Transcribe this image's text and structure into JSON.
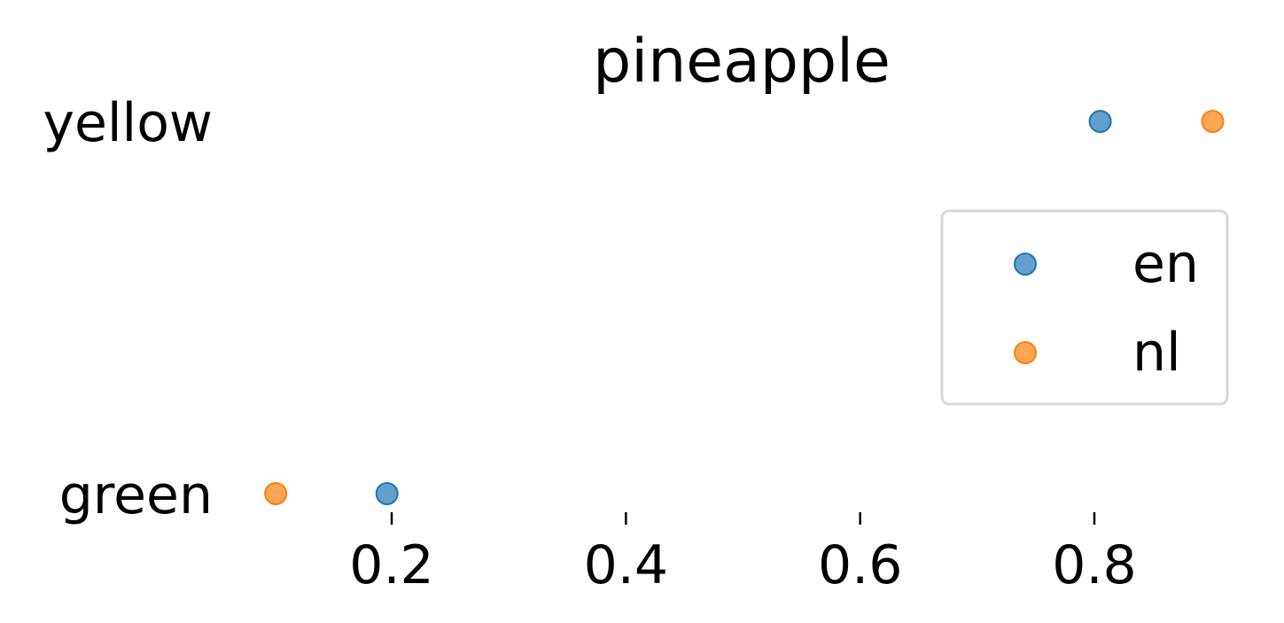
{
  "chart_data": {
    "type": "scatter",
    "title": "pineapple",
    "xlabel": "",
    "ylabel": "",
    "categories": [
      "yellow",
      "green"
    ],
    "x_ticks": [
      0.2,
      0.4,
      0.6,
      0.8
    ],
    "x_tick_labels": [
      "0.2",
      "0.4",
      "0.6",
      "0.8"
    ],
    "xlim": [
      0.0,
      1.0
    ],
    "grid": false,
    "legend_position": "right",
    "series": [
      {
        "name": "en",
        "color": "#1f77b4",
        "points": [
          {
            "category": "yellow",
            "x": 0.805
          },
          {
            "category": "green",
            "x": 0.196
          }
        ]
      },
      {
        "name": "nl",
        "color": "#ff7f0e",
        "points": [
          {
            "category": "yellow",
            "x": 0.901
          },
          {
            "category": "green",
            "x": 0.101
          }
        ]
      }
    ]
  }
}
